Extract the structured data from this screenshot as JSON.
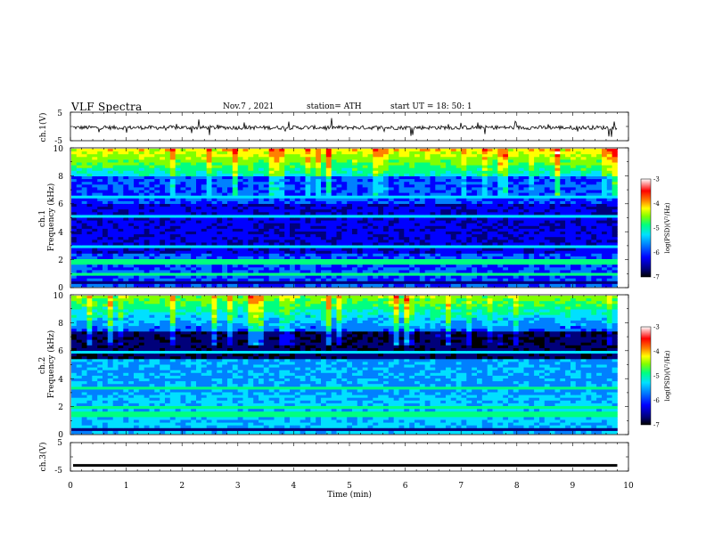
{
  "header": {
    "title": "VLF Spectra",
    "date": "Nov.7  , 2021",
    "station": "station= ATH",
    "start_ut": "start  UT  =   18: 50: 1"
  },
  "chart_data": [
    {
      "type": "line",
      "panel": "ch1-waveform",
      "ylabel": "ch.1(V)",
      "ylim": [
        -5,
        5
      ],
      "yticks": [
        "5",
        "-5"
      ],
      "xlim": [
        0,
        10
      ],
      "series": [
        {
          "name": "",
          "approx_level": -0.4
        }
      ]
    },
    {
      "type": "heatmap",
      "panel": "ch1-spectrogram",
      "ylabel": "ch.1\nFrequency  (kHz)",
      "ylim": [
        0,
        10
      ],
      "yticks": [
        "0",
        "2",
        "4",
        "6",
        "8",
        "10"
      ],
      "xlim": [
        0,
        10
      ],
      "colorbar": {
        "label": "log(PSD)(V²/Hz)",
        "range": [
          -7,
          -3
        ],
        "ticks": [
          "-3",
          "-4",
          "-5",
          "-6",
          "-7"
        ]
      }
    },
    {
      "type": "heatmap",
      "panel": "ch2-spectrogram",
      "ylabel": "ch.2\nFrequency  (kHz)",
      "ylim": [
        0,
        10
      ],
      "yticks": [
        "0",
        "2",
        "4",
        "6",
        "8",
        "10"
      ],
      "xlim": [
        0,
        10
      ],
      "colorbar": {
        "label": "log(PSD)(V²/Hz)",
        "range": [
          -7,
          -3
        ],
        "ticks": [
          "-3",
          "-4",
          "-5",
          "-6",
          "-7"
        ]
      }
    },
    {
      "type": "line",
      "panel": "ch3-waveform",
      "ylabel": "ch.3(V)",
      "ylim": [
        -5,
        5
      ],
      "yticks": [
        "5",
        "-5"
      ],
      "xlim": [
        0,
        10
      ],
      "series": [
        {
          "name": "",
          "approx_level": -3
        }
      ]
    }
  ],
  "x_axis": {
    "label": "Time  (min)",
    "ticks": [
      "0",
      "1",
      "2",
      "3",
      "4",
      "5",
      "6",
      "7",
      "8",
      "9",
      "10"
    ]
  },
  "colors": {
    "spectrogram_scale": [
      "#000000",
      "#00007a",
      "#0000ff",
      "#0080ff",
      "#00e0ff",
      "#00ff80",
      "#80ff00",
      "#ffff00",
      "#ff8000",
      "#ff0000",
      "#ffffff"
    ]
  }
}
